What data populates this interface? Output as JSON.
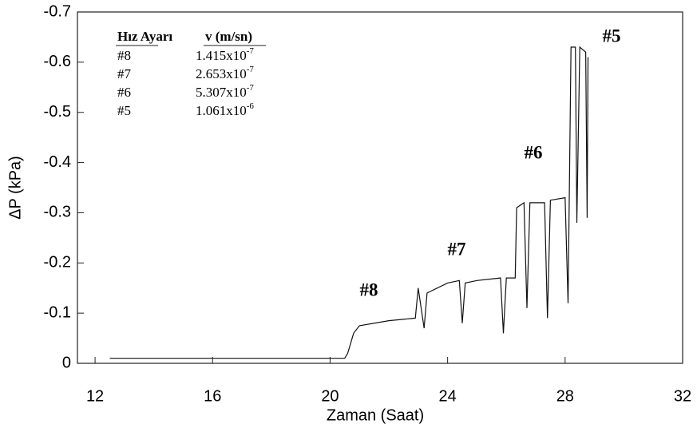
{
  "chart_data": {
    "type": "line",
    "x_label": "Zaman (Saat)",
    "y_label": "ΔP (kPa)",
    "xlim": [
      11.4,
      32
    ],
    "xticks": [
      12,
      16,
      20,
      24,
      28,
      32
    ],
    "ylim": [
      0,
      -0.7
    ],
    "yticks": [
      0,
      -0.1,
      -0.2,
      -0.3,
      -0.4,
      -0.5,
      -0.6,
      -0.7
    ],
    "series": [
      {
        "color": "#111111",
        "x": [
          12.5,
          20.5,
          20.6,
          20.7,
          20.8,
          21.0,
          22.0,
          22.9,
          23.0,
          23.1,
          23.2,
          23.3,
          24.0,
          24.4,
          24.5,
          24.6,
          25.0,
          25.8,
          25.9,
          26.0,
          26.3,
          26.35,
          26.6,
          26.7,
          26.8,
          27.3,
          27.4,
          27.5,
          28.0,
          28.1,
          28.2,
          28.35,
          28.4,
          28.5,
          28.7,
          28.75,
          28.78
        ],
        "values": [
          -0.01,
          -0.01,
          -0.02,
          -0.04,
          -0.06,
          -0.075,
          -0.085,
          -0.09,
          -0.15,
          -0.11,
          -0.07,
          -0.14,
          -0.16,
          -0.165,
          -0.08,
          -0.16,
          -0.165,
          -0.17,
          -0.06,
          -0.17,
          -0.17,
          -0.31,
          -0.32,
          -0.11,
          -0.32,
          -0.32,
          -0.09,
          -0.325,
          -0.33,
          -0.12,
          -0.63,
          -0.63,
          -0.28,
          -0.63,
          -0.62,
          -0.29,
          -0.61
        ]
      }
    ],
    "legend_table": {
      "header": [
        "Hız Ayarı",
        "v (m/sn)"
      ],
      "rows": [
        [
          "#8",
          "1.415x10",
          "-7"
        ],
        [
          "#7",
          "2.653x10",
          "-7"
        ],
        [
          "#6",
          "5.307x10",
          "-7"
        ],
        [
          "#5",
          "1.061x10",
          "-6"
        ]
      ]
    },
    "annotations": [
      "#8",
      "#7",
      "#6",
      "#5"
    ]
  }
}
